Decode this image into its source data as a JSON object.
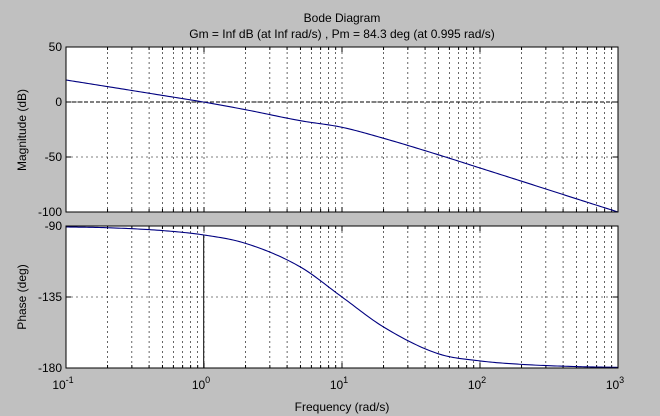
{
  "chart_data": {
    "type": "line",
    "title": "Bode Diagram",
    "subtitle": "Gm = Inf dB (at Inf rad/s) ,  Pm = 84.3 deg (at 0.995 rad/s)",
    "xlabel": "Frequency  (rad/s)",
    "xscale": "log",
    "xlim": [
      0.1,
      1000
    ],
    "grid": true,
    "x_ticks": [
      {
        "base": "10",
        "exp": "-1"
      },
      {
        "base": "10",
        "exp": "0"
      },
      {
        "base": "10",
        "exp": "1"
      },
      {
        "base": "10",
        "exp": "2"
      },
      {
        "base": "10",
        "exp": "3"
      }
    ],
    "panels": [
      {
        "name": "magnitude",
        "ylabel": "Magnitude (dB)",
        "ylim": [
          -100,
          50
        ],
        "yticks": [
          "50",
          "0",
          "-50",
          "-100"
        ],
        "ytick_values": [
          50,
          0,
          -50,
          -100
        ],
        "zero_line": 0,
        "series": [
          {
            "color": "#000080",
            "x": [
              0.1,
              0.2,
              0.5,
              1,
              2,
              5,
              10,
              20,
              50,
              100,
              200,
              500,
              1000
            ],
            "y": [
              20,
              14,
              6,
              -0.1,
              -7,
              -17,
              -23,
              -33,
              -48,
              -60,
              -72,
              -88,
              -100
            ]
          }
        ]
      },
      {
        "name": "phase",
        "ylabel": "Phase (deg)",
        "ylim": [
          -180,
          -90
        ],
        "yticks": [
          "-90",
          "-135",
          "-180"
        ],
        "ytick_values": [
          -90,
          -135,
          -180
        ],
        "zero_line": -180,
        "marker": {
          "x": 0.995,
          "y": -95.7
        },
        "series": [
          {
            "color": "#000080",
            "x": [
              0.1,
              0.2,
              0.5,
              1,
              2,
              5,
              10,
              20,
              50,
              100,
              200,
              500,
              1000
            ],
            "y": [
              -90.6,
              -91.1,
              -92.9,
              -95.7,
              -101,
              -116,
              -135,
              -154,
              -171,
              -175.5,
              -177.7,
              -179.1,
              -179.6
            ]
          }
        ]
      }
    ]
  }
}
